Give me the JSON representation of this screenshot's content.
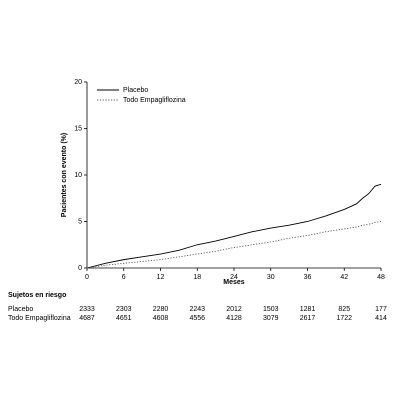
{
  "chart_data": {
    "type": "line",
    "xlabel": "Meses",
    "ylabel": "Pacientes con evento (%)",
    "x": [
      0,
      3,
      6,
      9,
      12,
      15,
      18,
      21,
      24,
      27,
      30,
      33,
      36,
      39,
      42,
      44,
      45,
      46,
      47,
      48
    ],
    "series": [
      {
        "name": "Placebo",
        "color": "#000000",
        "dash": "none",
        "values": [
          0,
          0.5,
          0.9,
          1.2,
          1.5,
          1.9,
          2.5,
          2.9,
          3.4,
          3.9,
          4.3,
          4.6,
          5.0,
          5.6,
          6.3,
          6.9,
          7.5,
          8.0,
          8.8,
          9.0
        ]
      },
      {
        "name": "Todo Empagliflozina",
        "color": "#555555",
        "dash": "1.2 1.6",
        "values": [
          0,
          0.3,
          0.5,
          0.7,
          0.9,
          1.2,
          1.5,
          1.8,
          2.2,
          2.5,
          2.8,
          3.2,
          3.5,
          3.9,
          4.2,
          4.4,
          4.6,
          4.7,
          4.9,
          5.0
        ]
      }
    ],
    "xlim": [
      0,
      48
    ],
    "xticks": [
      0,
      6,
      12,
      18,
      24,
      30,
      36,
      42,
      48
    ],
    "ylim": [
      0,
      20
    ],
    "yticks": [
      0,
      5,
      10,
      15,
      20
    ],
    "legend": "top-left",
    "risk_table": {
      "title": "Sujetos en riesgo",
      "rows": [
        {
          "name": "Placebo",
          "values": [
            2333,
            2303,
            2280,
            2243,
            2012,
            1503,
            1281,
            825,
            177
          ]
        },
        {
          "name": "Todo Empagliflozina",
          "values": [
            4687,
            4651,
            4608,
            4556,
            4128,
            3079,
            2617,
            1722,
            414
          ]
        }
      ]
    }
  }
}
